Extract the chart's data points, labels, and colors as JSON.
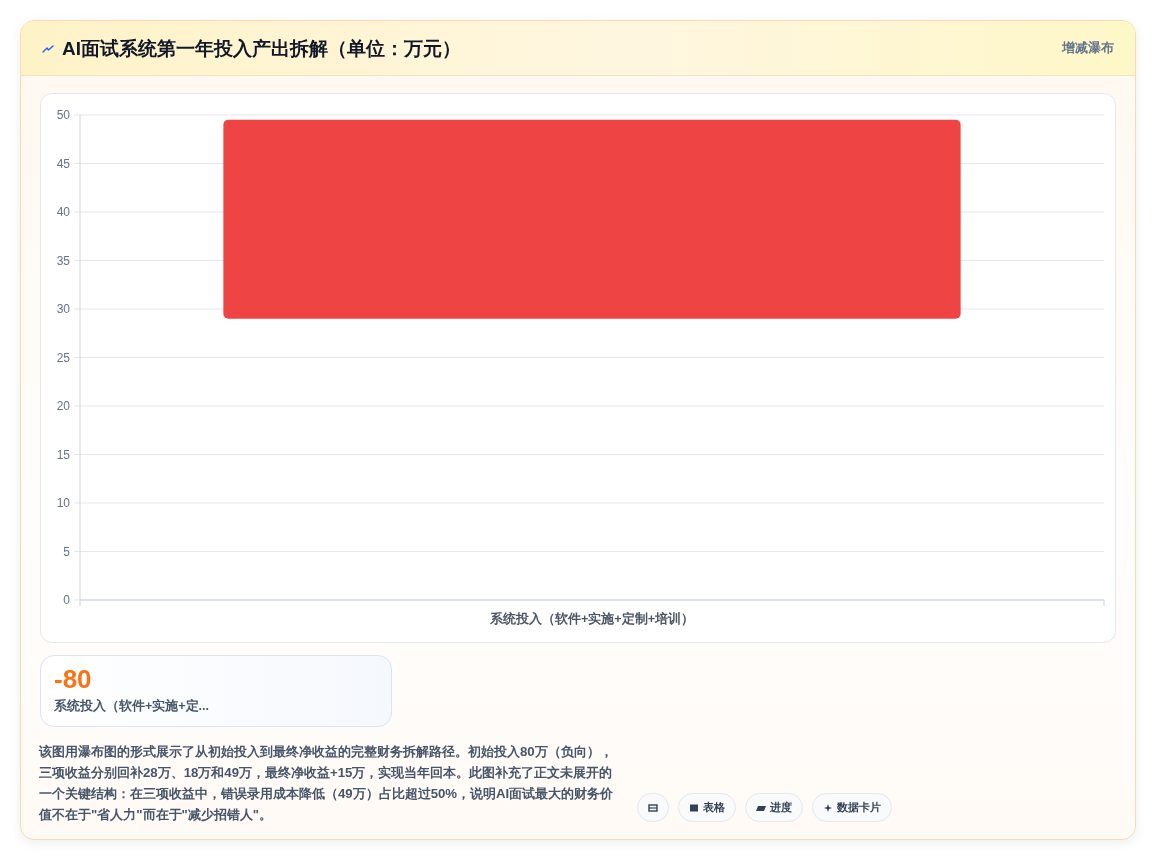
{
  "chart_data": [
    {
      "type": "bar",
      "title": "AI面试系统第一年投入产出拆解（单位：万元）",
      "subtitle": "增减瀑布",
      "categories": [
        "系统投入（软件+实施+定制+培训）"
      ],
      "values": [
        20.5
      ],
      "base": [
        29
      ],
      "color": "#ef4444",
      "ylim": [
        0,
        50
      ],
      "yticks": [
        0,
        5,
        10,
        15,
        20,
        25,
        30,
        35,
        40,
        45,
        50
      ],
      "grid": "y",
      "annotations": [
        "该图用瀑布图的形式展示了从初始投入到最终净收益的完整财务拆解路径。初始投入80万（负向），三项收益分别回补28万、18万和49万，最终净收益+15万，实现当年回本。此图补充了正文未展开的一个关键结构：在三项收益中，错误录用成本降低（49万）占比超过50%，说明AI面试最大的财务价值不在于\"省人力\"而在于\"减少招错人\"。",
        "表格",
        "进度",
        "数据卡片"
      ]
    },
    {
      "type": "other",
      "title": "-80",
      "subtitle": "系统投入（软件+实施+定..."
    }
  ]
}
